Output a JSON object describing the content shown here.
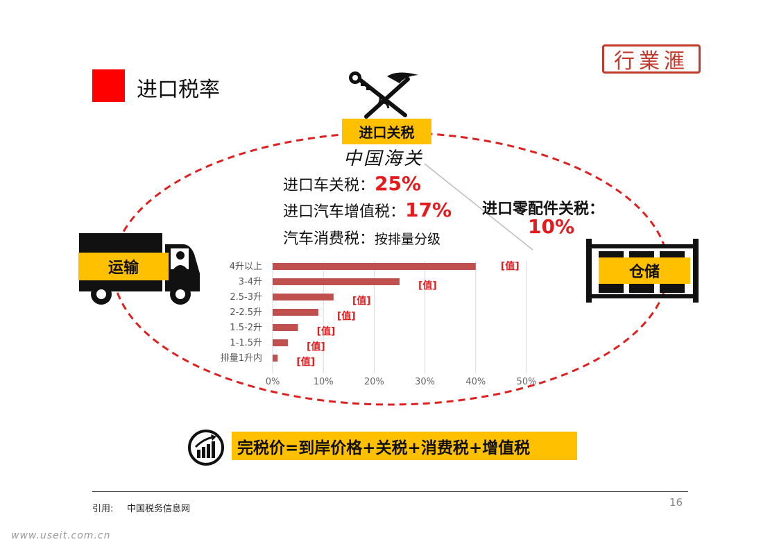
{
  "title": "进口税率",
  "logo_text": "行業滙",
  "customs": {
    "label": "进口关税",
    "subtitle": "中国海关"
  },
  "transport_label": "运输",
  "storage_label": "仓储",
  "rates": [
    {
      "label": "进口车关税：",
      "value": "25%"
    },
    {
      "label": "进口汽车增值税：",
      "value": "17%"
    },
    {
      "label": "汽车消费税：",
      "value": "按排量分级"
    }
  ],
  "parts_tariff": {
    "label": "进口零配件关税：",
    "value": "10%"
  },
  "formula": "完税价=到岸价格+关税+消费税+增值税",
  "footer": {
    "citation_label": "引用:",
    "citation_value": "中国税务信息网",
    "page": "16"
  },
  "watermark": "www.useit.com.cn",
  "colors": {
    "accent_red": "#ff0000",
    "highlight": "#ffc000",
    "bar": "#c0504d",
    "label_red": "#e41a1c"
  },
  "chart_data": {
    "type": "bar",
    "orientation": "horizontal",
    "categories": [
      "4升以上",
      "3-4升",
      "2.5-3升",
      "2-2.5升",
      "1.5-2升",
      "1-1.5升",
      "排量1升内"
    ],
    "values": [
      40,
      25,
      12,
      9,
      5,
      3,
      1
    ],
    "data_labels": [
      "[值]",
      "[值]",
      "[值]",
      "[值]",
      "[值]",
      "[值]",
      "[值]"
    ],
    "x_ticks": [
      "0%",
      "10%",
      "20%",
      "30%",
      "40%",
      "50%"
    ],
    "xlim": [
      0,
      50
    ],
    "grid": true,
    "unit": "%"
  }
}
